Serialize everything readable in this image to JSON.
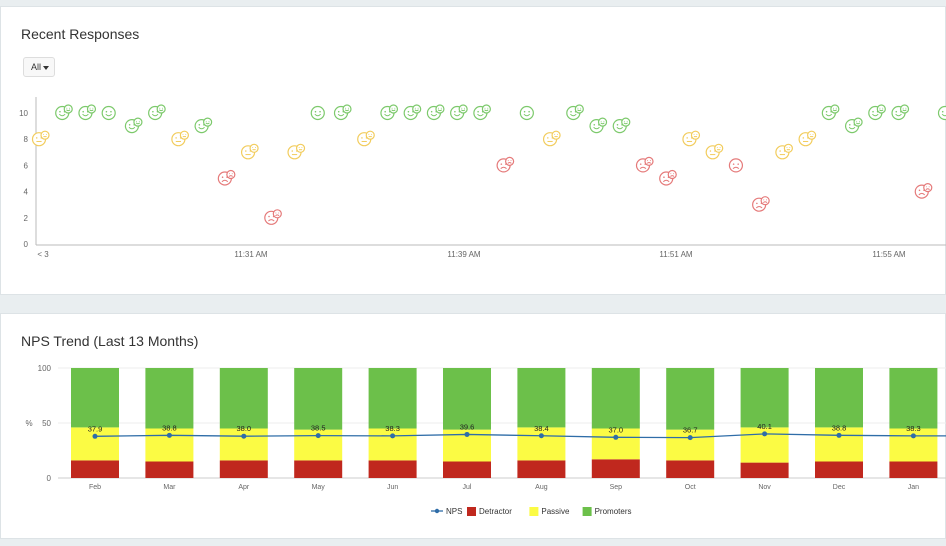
{
  "responses_panel": {
    "title": "Recent Responses",
    "filter_label": "All"
  },
  "nps_panel": {
    "title": "NPS Trend (Last 13 Months)"
  },
  "colors": {
    "happy": "#7cc96b",
    "neutral": "#f2cc5c",
    "sad": "#e57a7a",
    "nps_line": "#2f6da8",
    "detractor": "#c0281e",
    "passive": "#fbfb44",
    "promoters": "#6cc04a"
  },
  "chart_data": [
    {
      "type": "scatter",
      "title": "Recent Responses",
      "ylim": [
        0,
        10
      ],
      "yticks": [
        "0",
        "2",
        "4",
        "6",
        "8",
        "10"
      ],
      "xticks": [
        "< 3",
        "11:31 AM",
        "11:39 AM",
        "11:51 AM",
        "11:55 AM"
      ],
      "grid": false,
      "points": [
        {
          "score": 8,
          "mood": "neutral"
        },
        {
          "score": 10,
          "mood": "happy"
        },
        {
          "score": 10,
          "mood": "happy"
        },
        {
          "score": 10,
          "mood": "happy"
        },
        {
          "score": 9,
          "mood": "happy"
        },
        {
          "score": 10,
          "mood": "happy"
        },
        {
          "score": 8,
          "mood": "neutral"
        },
        {
          "score": 9,
          "mood": "happy"
        },
        {
          "score": 5,
          "mood": "sad"
        },
        {
          "score": 7,
          "mood": "neutral"
        },
        {
          "score": 2,
          "mood": "sad"
        },
        {
          "score": 7,
          "mood": "neutral"
        },
        {
          "score": 10,
          "mood": "happy"
        },
        {
          "score": 10,
          "mood": "happy"
        },
        {
          "score": 8,
          "mood": "neutral"
        },
        {
          "score": 10,
          "mood": "happy"
        },
        {
          "score": 10,
          "mood": "happy"
        },
        {
          "score": 10,
          "mood": "happy"
        },
        {
          "score": 10,
          "mood": "happy"
        },
        {
          "score": 10,
          "mood": "happy"
        },
        {
          "score": 6,
          "mood": "sad"
        },
        {
          "score": 10,
          "mood": "happy"
        },
        {
          "score": 8,
          "mood": "neutral"
        },
        {
          "score": 10,
          "mood": "happy"
        },
        {
          "score": 9,
          "mood": "happy"
        },
        {
          "score": 9,
          "mood": "happy"
        },
        {
          "score": 6,
          "mood": "sad"
        },
        {
          "score": 5,
          "mood": "sad"
        },
        {
          "score": 8,
          "mood": "neutral"
        },
        {
          "score": 7,
          "mood": "neutral"
        },
        {
          "score": 6,
          "mood": "sad"
        },
        {
          "score": 3,
          "mood": "sad"
        },
        {
          "score": 7,
          "mood": "neutral"
        },
        {
          "score": 8,
          "mood": "neutral"
        },
        {
          "score": 10,
          "mood": "happy"
        },
        {
          "score": 9,
          "mood": "happy"
        },
        {
          "score": 10,
          "mood": "happy"
        },
        {
          "score": 10,
          "mood": "happy"
        },
        {
          "score": 4,
          "mood": "sad"
        },
        {
          "score": 10,
          "mood": "happy"
        }
      ]
    },
    {
      "type": "bar",
      "stacked": true,
      "title": "NPS Trend (Last 13 Months)",
      "ylabel": "%",
      "ylim": [
        0,
        100
      ],
      "yticks": [
        "0",
        "50",
        "100"
      ],
      "categories": [
        "Feb",
        "Mar",
        "Apr",
        "May",
        "Jun",
        "Jul",
        "Aug",
        "Sep",
        "Oct",
        "Nov",
        "Dec",
        "Jan"
      ],
      "series": [
        {
          "name": "Detractor",
          "values": [
            16,
            15,
            16,
            16,
            16,
            15,
            16,
            17,
            16,
            14,
            15,
            15
          ]
        },
        {
          "name": "Passive",
          "values": [
            30,
            30,
            29,
            28,
            29,
            29,
            30,
            28,
            28,
            32,
            31,
            30
          ]
        },
        {
          "name": "Promoters",
          "values": [
            54,
            55,
            55,
            56,
            55,
            56,
            54,
            55,
            56,
            54,
            54,
            55
          ]
        }
      ],
      "line": {
        "name": "NPS",
        "values": [
          37.9,
          38.8,
          38.0,
          38.5,
          38.3,
          39.6,
          38.4,
          37.0,
          36.7,
          40.1,
          38.8,
          38.3
        ],
        "labels": [
          "37.9",
          "38.8",
          "38.0",
          "38.5",
          "38.3",
          "39.6",
          "38.4",
          "37.0",
          "36.7",
          "40.1",
          "38.8",
          "38.3"
        ]
      },
      "legend": {
        "position": "bottom",
        "items": [
          "NPS",
          "Detractor",
          "Passive",
          "Promoters"
        ]
      }
    }
  ]
}
